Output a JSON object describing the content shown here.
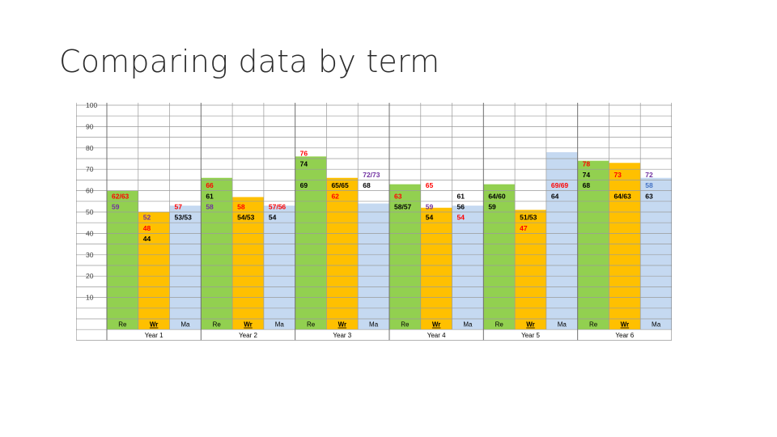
{
  "slide": {
    "title": "Comparing data by term"
  },
  "chart_data": {
    "type": "table",
    "colors": {
      "re": "#92d050",
      "wr": "#ffc000",
      "ma": "#c5d9f1",
      "value_red": "#ff0000",
      "value_purple": "#7030a0",
      "value_blue": "#4472c4",
      "value_black": "#000000"
    },
    "row_labels": [
      "100",
      "90",
      "80",
      "70",
      "60",
      "50",
      "40",
      "30",
      "20",
      "10"
    ],
    "subject_labels": [
      "Re",
      "Wr",
      "Ma"
    ],
    "years": [
      "Year 1",
      "Year 2",
      "Year 3",
      "Year 4",
      "Year 5",
      "Year 6"
    ],
    "bar_top": [
      60,
      50,
      53,
      66,
      57,
      53,
      76,
      66,
      54,
      63,
      52,
      53,
      63,
      51,
      78,
      74,
      73,
      66
    ],
    "cells": [
      {
        "col": 0,
        "row": 9,
        "text": "62/63",
        "color": "value_red"
      },
      {
        "col": 0,
        "row": 10,
        "text": "59",
        "color": "value_purple"
      },
      {
        "col": 1,
        "row": 11,
        "text": "52",
        "color": "value_purple"
      },
      {
        "col": 1,
        "row": 12,
        "text": "48",
        "color": "value_red"
      },
      {
        "col": 1,
        "row": 13,
        "text": "44",
        "color": "value_black"
      },
      {
        "col": 2,
        "row": 10,
        "text": "57",
        "color": "value_red"
      },
      {
        "col": 2,
        "row": 11,
        "text": "53/53",
        "color": "value_black"
      },
      {
        "col": 3,
        "row": 8,
        "text": "66",
        "color": "value_red"
      },
      {
        "col": 3,
        "row": 9,
        "text": "61",
        "color": "value_black"
      },
      {
        "col": 3,
        "row": 10,
        "text": "58",
        "color": "value_purple"
      },
      {
        "col": 4,
        "row": 10,
        "text": "58",
        "color": "value_red"
      },
      {
        "col": 4,
        "row": 11,
        "text": "54/53",
        "color": "value_black"
      },
      {
        "col": 5,
        "row": 10,
        "text": "57/56",
        "color": "value_red"
      },
      {
        "col": 5,
        "row": 11,
        "text": "54",
        "color": "value_black"
      },
      {
        "col": 6,
        "row": 5,
        "text": "76",
        "color": "value_red"
      },
      {
        "col": 6,
        "row": 6,
        "text": "74",
        "color": "value_black"
      },
      {
        "col": 6,
        "row": 8,
        "text": "69",
        "color": "value_black"
      },
      {
        "col": 7,
        "row": 8,
        "text": "65/65",
        "color": "value_black"
      },
      {
        "col": 7,
        "row": 9,
        "text": "62",
        "color": "value_red"
      },
      {
        "col": 8,
        "row": 7,
        "text": "72/73",
        "color": "value_purple"
      },
      {
        "col": 8,
        "row": 8,
        "text": "68",
        "color": "value_black"
      },
      {
        "col": 9,
        "row": 9,
        "text": "63",
        "color": "value_red"
      },
      {
        "col": 9,
        "row": 10,
        "text": "58/57",
        "color": "value_black"
      },
      {
        "col": 10,
        "row": 8,
        "text": "65",
        "color": "value_red"
      },
      {
        "col": 10,
        "row": 10,
        "text": "59",
        "color": "value_purple"
      },
      {
        "col": 10,
        "row": 11,
        "text": "54",
        "color": "value_black"
      },
      {
        "col": 11,
        "row": 9,
        "text": "61",
        "color": "value_black"
      },
      {
        "col": 11,
        "row": 10,
        "text": "56",
        "color": "value_black"
      },
      {
        "col": 11,
        "row": 11,
        "text": "54",
        "color": "value_red"
      },
      {
        "col": 12,
        "row": 9,
        "text": "64/60",
        "color": "value_black"
      },
      {
        "col": 12,
        "row": 10,
        "text": "59",
        "color": "value_black"
      },
      {
        "col": 13,
        "row": 11,
        "text": "51/53",
        "color": "value_black"
      },
      {
        "col": 13,
        "row": 12,
        "text": "47",
        "color": "value_red"
      },
      {
        "col": 14,
        "row": 8,
        "text": "69/69",
        "color": "value_red"
      },
      {
        "col": 14,
        "row": 9,
        "text": "64",
        "color": "value_black"
      },
      {
        "col": 15,
        "row": 6,
        "text": "78",
        "color": "value_red"
      },
      {
        "col": 15,
        "row": 7,
        "text": "74",
        "color": "value_black"
      },
      {
        "col": 15,
        "row": 8,
        "text": "68",
        "color": "value_black"
      },
      {
        "col": 16,
        "row": 7,
        "text": "73",
        "color": "value_red"
      },
      {
        "col": 16,
        "row": 9,
        "text": "64/63",
        "color": "value_black"
      },
      {
        "col": 17,
        "row": 7,
        "text": "72",
        "color": "value_purple"
      },
      {
        "col": 17,
        "row": 8,
        "text": "58",
        "color": "value_blue"
      },
      {
        "col": 17,
        "row": 9,
        "text": "63",
        "color": "value_black"
      }
    ]
  }
}
